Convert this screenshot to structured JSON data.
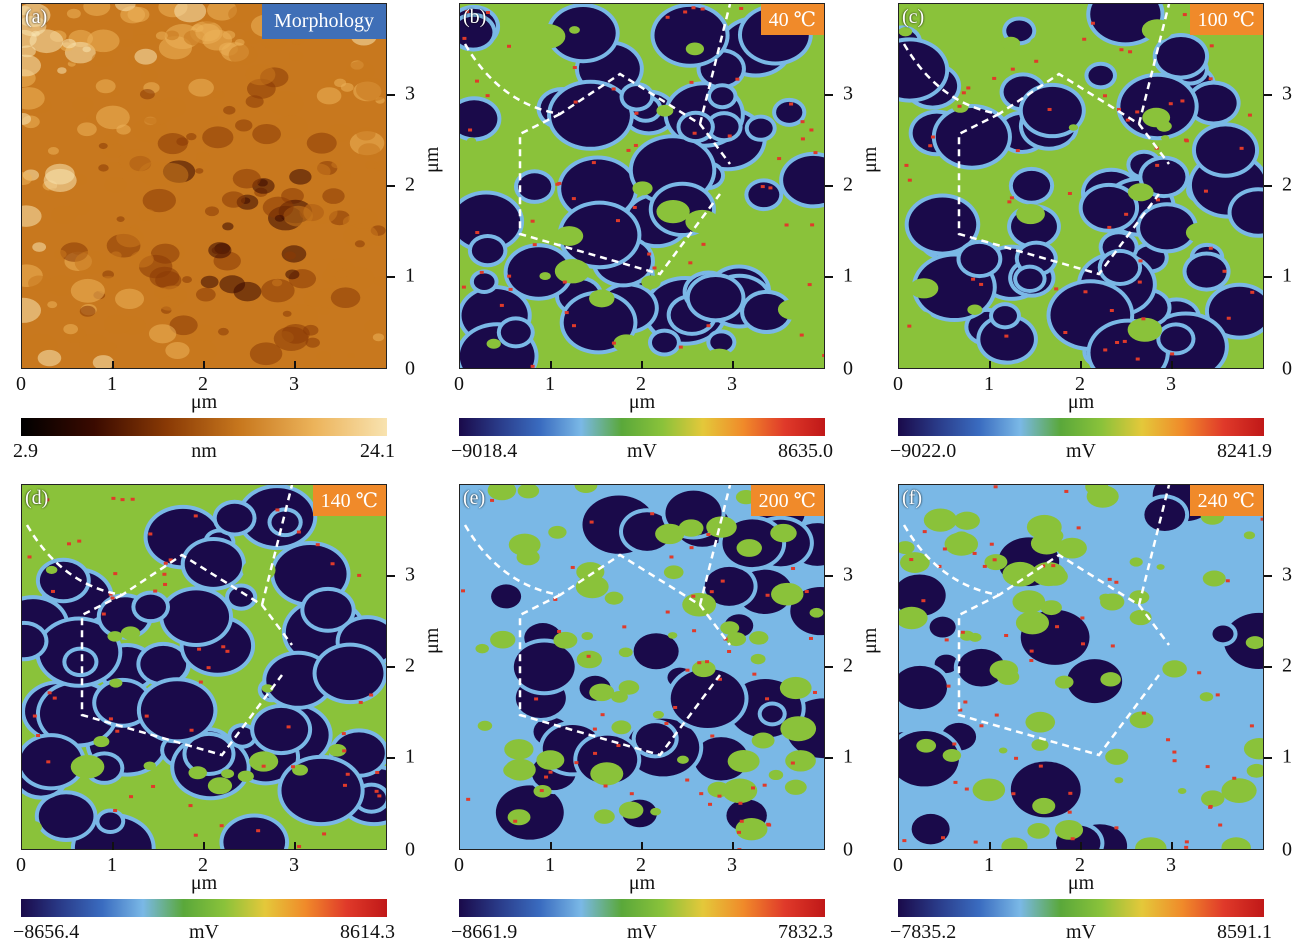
{
  "axis_unit": "μm",
  "panels": [
    {
      "id": "a",
      "label": "(a)",
      "title": "Morphology",
      "cbar_min": "2.9",
      "cbar_max": "24.1",
      "cbar_unit": "nm",
      "kind": "topo",
      "seed": 7,
      "x_ticks": [
        "0",
        "1",
        "2",
        "3"
      ],
      "y_ticks": [
        "0",
        "1",
        "2",
        "3"
      ]
    },
    {
      "id": "b",
      "label": "(b)",
      "title": "40 ℃",
      "cbar_min": "−9018.4",
      "cbar_max": "8635.0",
      "cbar_unit": "mV",
      "kind": "kpfm",
      "seed": 11,
      "x_ticks": [
        "0",
        "1",
        "2",
        "3"
      ],
      "y_ticks": [
        "0",
        "1",
        "2",
        "3"
      ]
    },
    {
      "id": "c",
      "label": "(c)",
      "title": "100 ℃",
      "cbar_min": "−9022.0",
      "cbar_max": "8241.9",
      "cbar_unit": "mV",
      "kind": "kpfm",
      "seed": 23,
      "x_ticks": [
        "0",
        "1",
        "2",
        "3"
      ],
      "y_ticks": [
        "0",
        "1",
        "2",
        "3"
      ]
    },
    {
      "id": "d",
      "label": "(d)",
      "title": "140 ℃",
      "cbar_min": "−8656.4",
      "cbar_max": "8614.3",
      "cbar_unit": "mV",
      "kind": "kpfm",
      "seed": 37,
      "x_ticks": [
        "0",
        "1",
        "2",
        "3"
      ],
      "y_ticks": [
        "0",
        "1",
        "2",
        "3"
      ]
    },
    {
      "id": "e",
      "label": "(e)",
      "title": "200 ℃",
      "cbar_min": "−8661.9",
      "cbar_max": "7832.3",
      "cbar_unit": "mV",
      "kind": "kpfm2",
      "seed": 41,
      "x_ticks": [
        "0",
        "1",
        "2",
        "3"
      ],
      "y_ticks": [
        "0",
        "1",
        "2",
        "3"
      ]
    },
    {
      "id": "f",
      "label": "(f)",
      "title": "240 ℃",
      "cbar_min": "−7835.2",
      "cbar_max": "8591.1",
      "cbar_unit": "mV",
      "kind": "kpfm3",
      "seed": 53,
      "x_ticks": [
        "0",
        "1",
        "2",
        "3"
      ],
      "y_ticks": [
        "0",
        "1",
        "2",
        "3"
      ]
    }
  ],
  "colors": {
    "topo_scale": [
      "#000000",
      "#3a0a00",
      "#8a3a05",
      "#c8781e",
      "#ecb35a",
      "#f8e3b0"
    ],
    "kpfm_scale": [
      "#1a0a4a",
      "#2a3c8a",
      "#3a6cc0",
      "#7ab8e6",
      "#5aa83a",
      "#8ac23a",
      "#e4c83a",
      "#f08a2a",
      "#e03a2a",
      "#c01818"
    ],
    "badge_orange": "#f08a2a",
    "badge_blue": "#3f6fb7"
  }
}
